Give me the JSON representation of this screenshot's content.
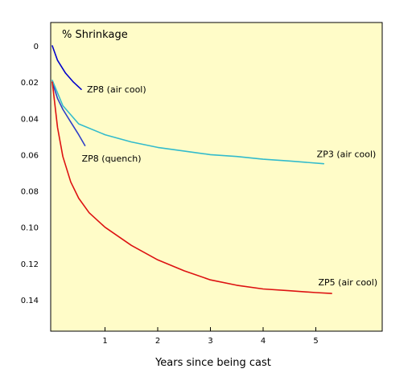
{
  "chart_data": {
    "type": "line",
    "title": "% Shrinkage",
    "xlabel": "Years since being cast",
    "ylabel": "",
    "xlim": [
      0,
      6.5
    ],
    "ylim": [
      0,
      0.155
    ],
    "y_inverted": true,
    "grid": false,
    "background_color": "#FFFCC8",
    "x_ticks": [
      1,
      2,
      3,
      4,
      5
    ],
    "x_tick_labels": [
      "1",
      "2",
      "3",
      "4",
      "5"
    ],
    "y_ticks": [
      0,
      0.02,
      0.04,
      0.06,
      0.08,
      0.1,
      0.12,
      0.14
    ],
    "y_tick_labels": [
      "0",
      "0.02",
      "0.04",
      "0.06",
      "0.08",
      "0.10",
      "0.12",
      "0.14"
    ],
    "series": [
      {
        "name": "ZP8 (air cool)",
        "color": "#0000CC",
        "x": [
          0,
          0.1,
          0.25,
          0.4,
          0.55
        ],
        "y": [
          0,
          0.008,
          0.015,
          0.02,
          0.024
        ]
      },
      {
        "name": "ZP8 (quench)",
        "color": "#2E3FC8",
        "x": [
          0,
          0.1,
          0.2,
          0.35,
          0.5,
          0.62
        ],
        "y": [
          0.02,
          0.029,
          0.035,
          0.042,
          0.049,
          0.055
        ]
      },
      {
        "name": "ZP3 (air cool)",
        "color": "#33BBCC",
        "x": [
          0,
          0.2,
          0.5,
          1,
          1.5,
          2,
          2.5,
          3,
          3.5,
          4,
          4.5,
          5.15
        ],
        "y": [
          0.019,
          0.033,
          0.043,
          0.049,
          0.053,
          0.056,
          0.058,
          0.06,
          0.061,
          0.0625,
          0.0635,
          0.065
        ]
      },
      {
        "name": "ZP5 (air cool)",
        "color": "#DD1111",
        "x": [
          0,
          0.1,
          0.2,
          0.35,
          0.5,
          0.7,
          1,
          1.5,
          2,
          2.5,
          3,
          3.5,
          4,
          4.5,
          5,
          5.3
        ],
        "y": [
          0.02,
          0.045,
          0.061,
          0.075,
          0.084,
          0.092,
          0.1,
          0.11,
          0.118,
          0.124,
          0.129,
          0.132,
          0.134,
          0.135,
          0.136,
          0.1365
        ]
      }
    ]
  }
}
